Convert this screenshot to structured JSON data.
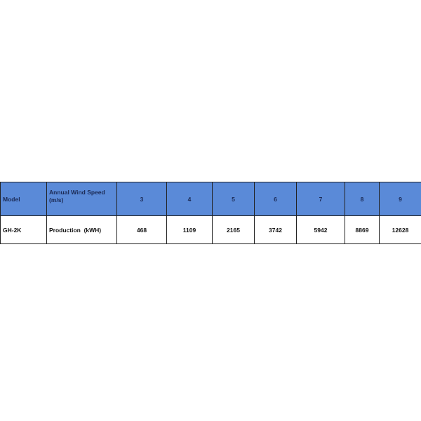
{
  "table": {
    "header": {
      "model_label": "Model",
      "speed_label": "Annual Wind Speed (m/s)",
      "speeds": [
        "3",
        "4",
        "5",
        "6",
        "7",
        "8",
        "9"
      ]
    },
    "rows": [
      {
        "model": "GH-2K",
        "label": "Production  (kWH)",
        "values": [
          "468",
          "1109",
          "2165",
          "3742",
          "5942",
          "8869",
          "12628"
        ]
      }
    ]
  },
  "colors": {
    "header_bg": "#5a8ad8",
    "header_text": "#1b2a55"
  }
}
